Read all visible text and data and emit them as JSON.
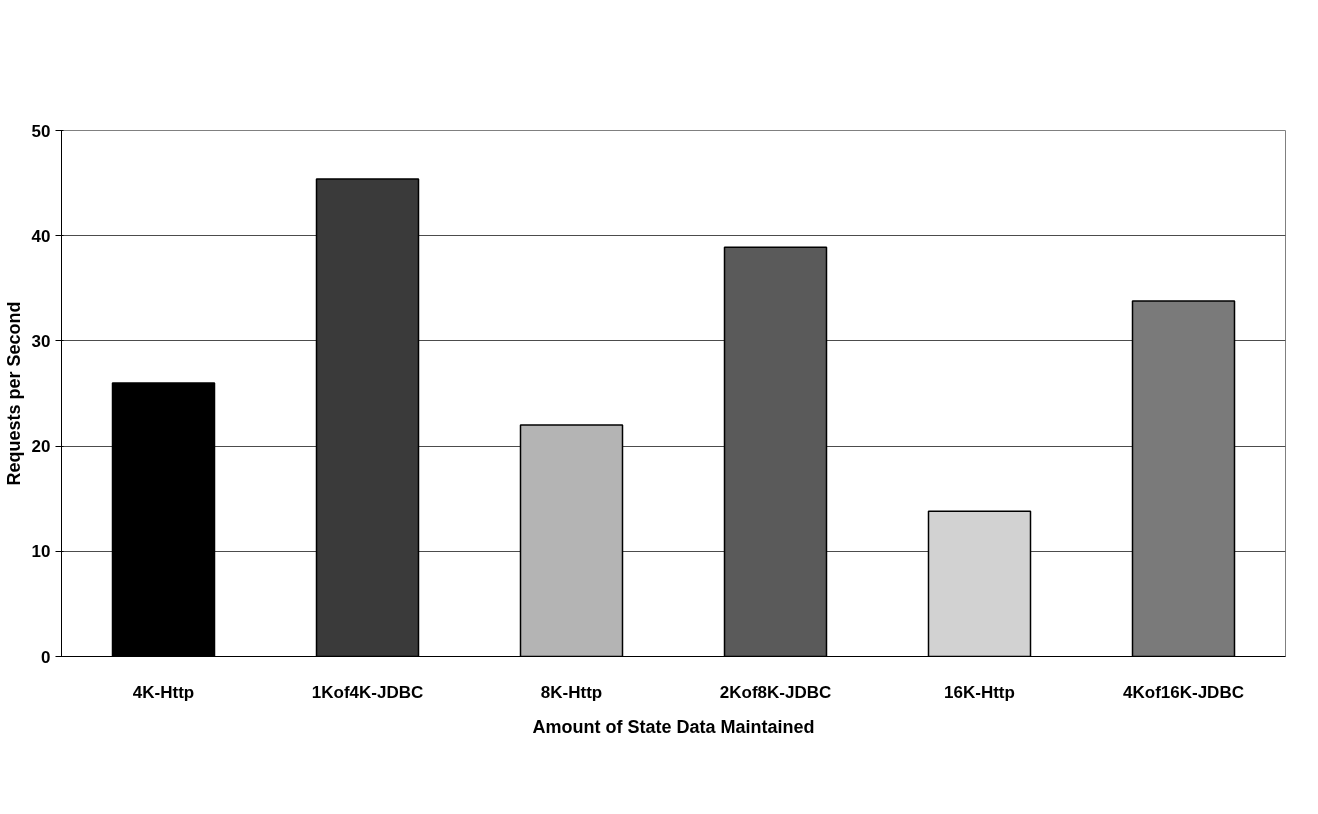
{
  "chart_data": {
    "type": "bar",
    "xlabel": "Amount of State Data Maintained",
    "ylabel": "Requests per Second",
    "categories": [
      "4K-Http",
      "1Kof4K-JDBC",
      "8K-Http",
      "2Kof8K-JDBC",
      "16K-Http",
      "4Kof16K-JDBC"
    ],
    "values": [
      26.0,
      45.4,
      22.0,
      38.9,
      13.8,
      33.8
    ],
    "colors": [
      "#000000",
      "#3a3a3a",
      "#b4b4b4",
      "#5a5a5a",
      "#d2d2d2",
      "#7a7a7a"
    ],
    "ylim": [
      0,
      50
    ],
    "yticks": [
      0,
      10,
      20,
      30,
      40,
      50
    ],
    "grid": "y"
  }
}
